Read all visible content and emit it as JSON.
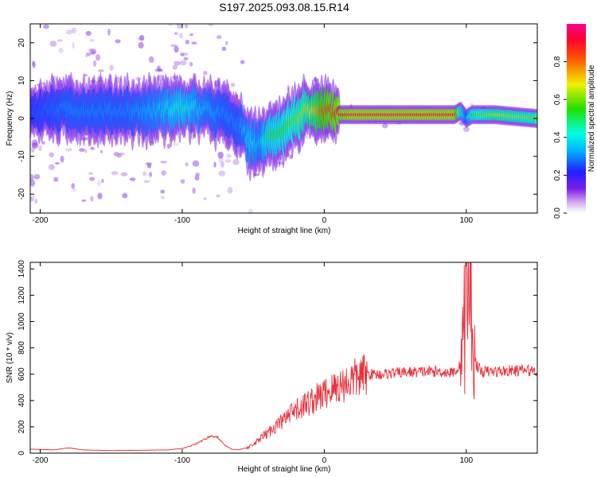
{
  "title": "S197.2025.093.08.15.R14",
  "colors": {
    "snr_line": "#e8323c",
    "axes": "#000000",
    "background": "#ffffff"
  },
  "chart_data": [
    {
      "type": "heatmap",
      "xlabel": "Height of straight line (km)",
      "ylabel": "Frequency (Hz)",
      "xlim": [
        -207,
        150
      ],
      "ylim": [
        -25,
        25
      ],
      "x_ticks": [
        -200,
        -100,
        0,
        100
      ],
      "y_ticks": [
        -20,
        -10,
        0,
        10,
        20
      ],
      "colorbar": {
        "label": "Normalized spectral amplitude",
        "range": [
          0.0,
          1.0
        ],
        "ticks": [
          "0.0",
          "0.2",
          "0.4",
          "0.6",
          "0.8"
        ],
        "colormap": "rainbow (white → purple → blue → cyan → green → yellow → red → magenta)"
      },
      "ridge": {
        "description": "dominant frequency ridge",
        "x": [
          -207,
          -180,
          -160,
          -140,
          -120,
          -100,
          -85,
          -70,
          -60,
          -52,
          -45,
          -40,
          -30,
          -20,
          -12,
          -5,
          0,
          10,
          20,
          40,
          60,
          80,
          92,
          96,
          100,
          104,
          120,
          150
        ],
        "frequency": [
          2,
          2.5,
          2,
          2,
          2,
          3,
          2.5,
          1,
          -2,
          -6,
          -7,
          -5,
          -3,
          0,
          2,
          1,
          2,
          1,
          1,
          1,
          1,
          1,
          1,
          2,
          0,
          1,
          1,
          0
        ],
        "amplitude": [
          0.25,
          0.3,
          0.3,
          0.3,
          0.35,
          0.45,
          0.35,
          0.3,
          0.3,
          0.4,
          0.35,
          0.5,
          0.55,
          0.6,
          0.65,
          0.75,
          0.85,
          0.9,
          0.95,
          0.95,
          0.95,
          0.95,
          0.95,
          0.5,
          0.3,
          0.55,
          0.65,
          0.6
        ]
      }
    },
    {
      "type": "line",
      "xlabel": "Height of straight line (km)",
      "ylabel": "SNR (10 * v/v)",
      "xlim": [
        -207,
        150
      ],
      "ylim": [
        0,
        1450
      ],
      "x_ticks": [
        -200,
        -100,
        0,
        100
      ],
      "y_ticks": [
        0,
        200,
        400,
        600,
        800,
        1000,
        1200,
        1400
      ],
      "series": [
        {
          "color": "#e8323c",
          "x": [
            -207,
            -190,
            -180,
            -170,
            -150,
            -130,
            -110,
            -100,
            -90,
            -85,
            -80,
            -75,
            -70,
            -65,
            -60,
            -50,
            -45,
            -40,
            -35,
            -30,
            -25,
            -20,
            -15,
            -10,
            -5,
            0,
            5,
            10,
            15,
            20,
            25,
            30,
            40,
            50,
            60,
            70,
            80,
            90,
            95,
            98,
            100,
            102,
            104,
            106,
            110,
            120,
            130,
            140,
            150
          ],
          "values": [
            30,
            25,
            40,
            25,
            20,
            22,
            25,
            35,
            70,
            100,
            130,
            120,
            60,
            30,
            25,
            60,
            110,
            150,
            200,
            240,
            280,
            320,
            360,
            390,
            420,
            450,
            480,
            510,
            530,
            560,
            580,
            600,
            600,
            610,
            615,
            620,
            620,
            610,
            650,
            900,
            1100,
            1450,
            1000,
            700,
            620,
            620,
            625,
            630,
            630
          ]
        }
      ]
    }
  ]
}
